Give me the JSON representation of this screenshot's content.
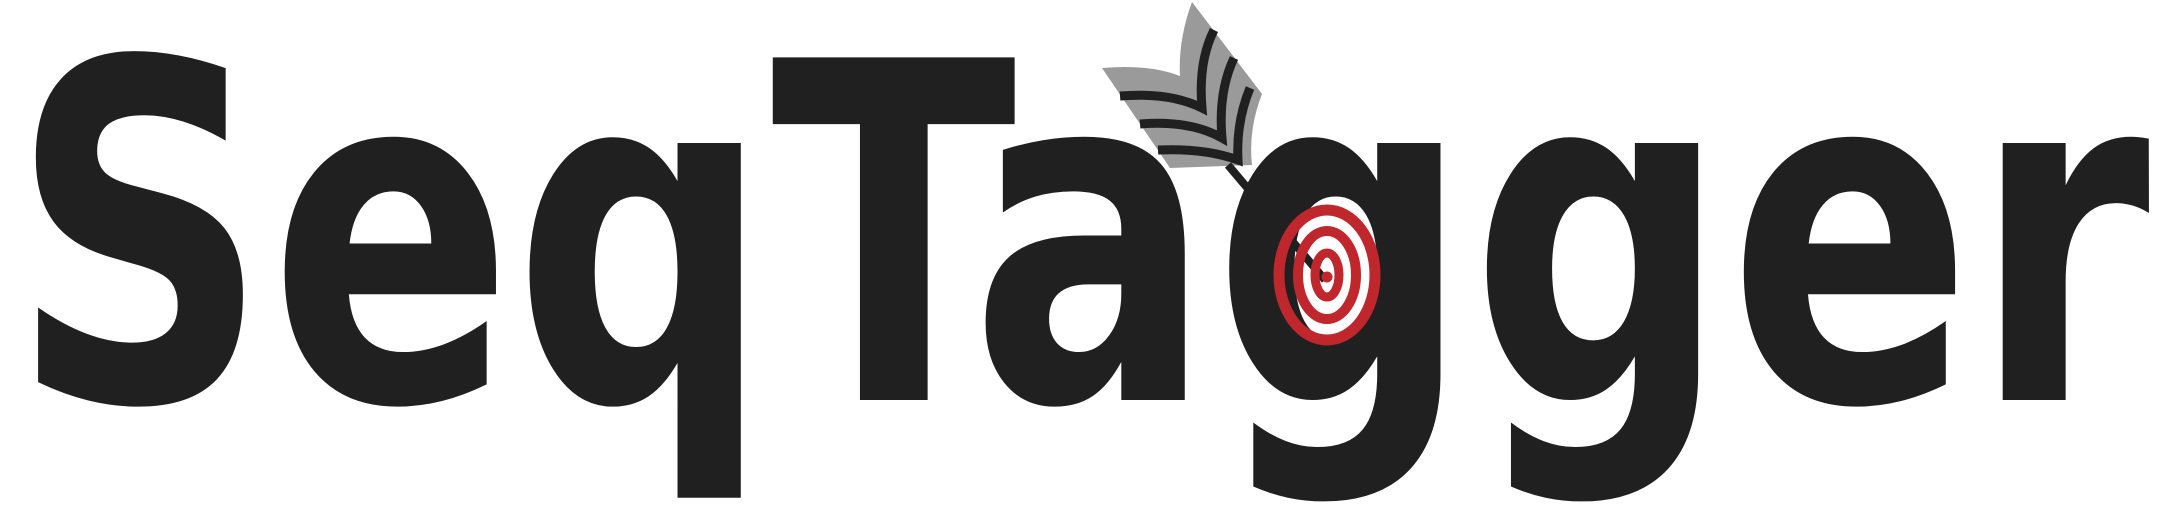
{
  "logo": {
    "text": "SeqTagger"
  }
}
